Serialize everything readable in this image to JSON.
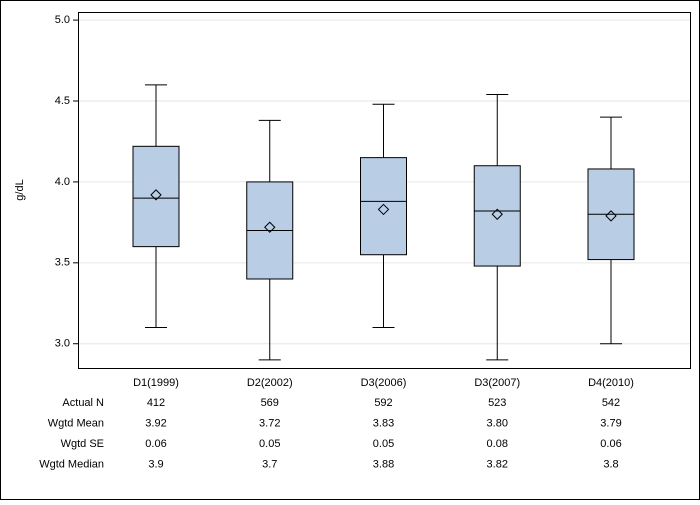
{
  "chart_data": {
    "type": "box",
    "y_label": "g/dL",
    "categories": [
      "D1(1999)",
      "D2(2002)",
      "D3(2006)",
      "D3(2007)",
      "D4(2010)"
    ],
    "color": "#b9cde5",
    "boxes": [
      {
        "whisker_low": 3.1,
        "q1": 3.6,
        "median": 3.9,
        "q3": 4.22,
        "whisker_high": 4.6,
        "mean": 3.92
      },
      {
        "whisker_low": 2.9,
        "q1": 3.4,
        "median": 3.7,
        "q3": 4.0,
        "whisker_high": 4.38,
        "mean": 3.72
      },
      {
        "whisker_low": 3.1,
        "q1": 3.55,
        "median": 3.88,
        "q3": 4.15,
        "whisker_high": 4.48,
        "mean": 3.83
      },
      {
        "whisker_low": 2.9,
        "q1": 3.48,
        "median": 3.82,
        "q3": 4.1,
        "whisker_high": 4.54,
        "mean": 3.8
      },
      {
        "whisker_low": 3.0,
        "q1": 3.52,
        "median": 3.8,
        "q3": 4.08,
        "whisker_high": 4.4,
        "mean": 3.79
      }
    ],
    "ylim": [
      2.85,
      5.05
    ],
    "yticks": [
      {
        "value": 3.0,
        "label": "3.0"
      },
      {
        "value": 3.5,
        "label": "3.5"
      },
      {
        "value": 4.0,
        "label": "4.0"
      },
      {
        "value": 4.5,
        "label": "4.5"
      },
      {
        "value": 5.0,
        "label": "5.0"
      }
    ],
    "grid": true,
    "table": {
      "rows": [
        {
          "label": "Actual N",
          "values": [
            "412",
            "569",
            "592",
            "523",
            "542"
          ]
        },
        {
          "label": "Wgtd Mean",
          "values": [
            "3.92",
            "3.72",
            "3.83",
            "3.80",
            "3.79"
          ]
        },
        {
          "label": "Wgtd SE",
          "values": [
            "0.06",
            "0.05",
            "0.05",
            "0.08",
            "0.06"
          ]
        },
        {
          "label": "Wgtd Median",
          "values": [
            "3.9",
            "3.7",
            "3.88",
            "3.82",
            "3.8"
          ]
        }
      ]
    }
  }
}
